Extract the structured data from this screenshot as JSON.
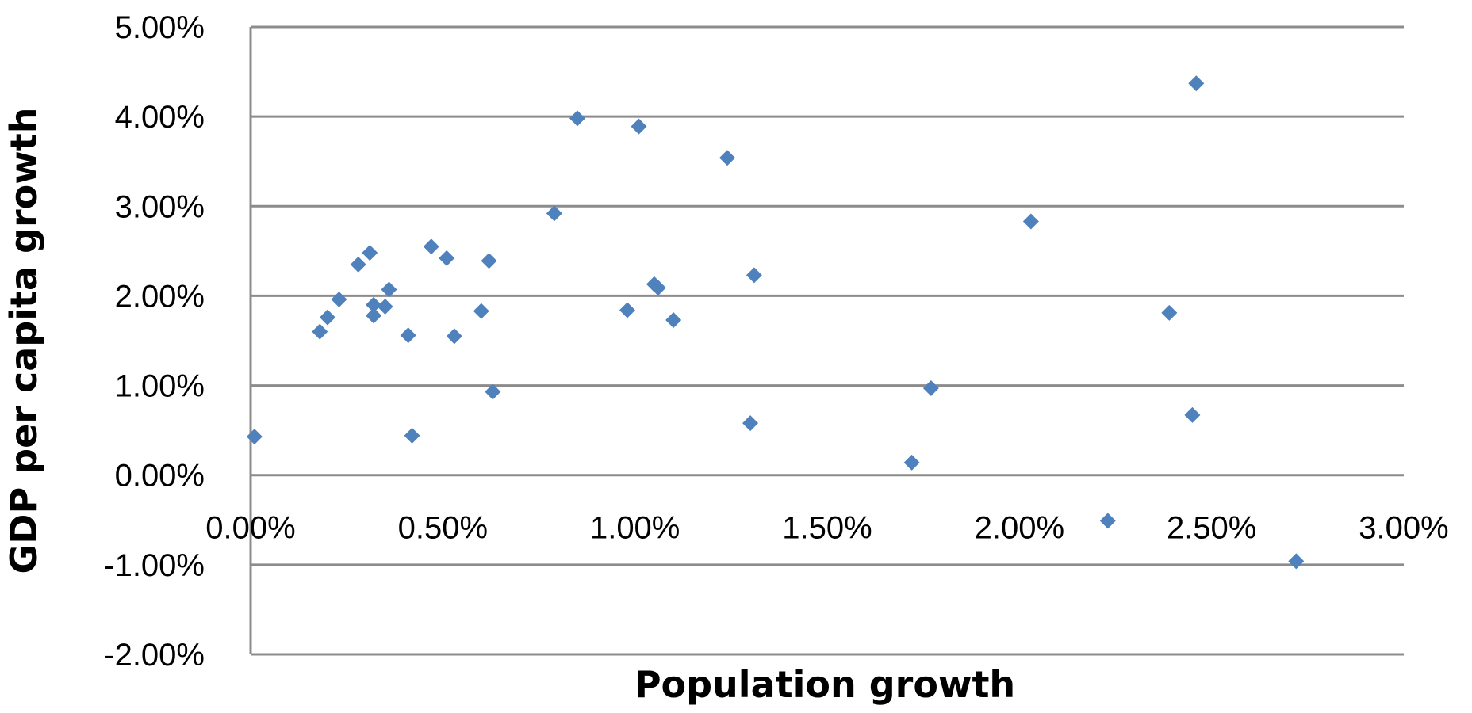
{
  "chart_data": {
    "type": "scatter",
    "title": "",
    "xlabel": "Population growth",
    "ylabel": "GDP per capita growth",
    "xlim": [
      0,
      0.03
    ],
    "ylim": [
      -0.02,
      0.05
    ],
    "x_ticks": [
      0,
      0.005,
      0.01,
      0.015,
      0.02,
      0.025,
      0.03
    ],
    "x_tick_labels": [
      "0.00%",
      "0.50%",
      "1.00%",
      "1.50%",
      "2.00%",
      "2.50%",
      "3.00%"
    ],
    "y_ticks": [
      0.05,
      0.04,
      0.03,
      0.02,
      0.01,
      0,
      -0.01,
      -0.02
    ],
    "y_tick_labels": [
      "5.00%",
      "4.00%",
      "3.00%",
      "2.00%",
      "1.00%",
      "0.00%",
      "-1.00%",
      "-2.00%"
    ],
    "grid": true,
    "marker": "diamond",
    "marker_color": "#4F81BD",
    "grid_color": "#8C8C8C",
    "points": [
      {
        "x": 0.0001,
        "y": 0.0043
      },
      {
        "x": 0.0018,
        "y": 0.016
      },
      {
        "x": 0.002,
        "y": 0.0176
      },
      {
        "x": 0.0023,
        "y": 0.0196
      },
      {
        "x": 0.0028,
        "y": 0.0235
      },
      {
        "x": 0.0031,
        "y": 0.0248
      },
      {
        "x": 0.0032,
        "y": 0.019
      },
      {
        "x": 0.0032,
        "y": 0.0178
      },
      {
        "x": 0.0035,
        "y": 0.0188
      },
      {
        "x": 0.0036,
        "y": 0.0207
      },
      {
        "x": 0.0041,
        "y": 0.0156
      },
      {
        "x": 0.0042,
        "y": 0.0044
      },
      {
        "x": 0.0047,
        "y": 0.0255
      },
      {
        "x": 0.0051,
        "y": 0.0242
      },
      {
        "x": 0.0053,
        "y": 0.0155
      },
      {
        "x": 0.006,
        "y": 0.0183
      },
      {
        "x": 0.0062,
        "y": 0.0239
      },
      {
        "x": 0.0063,
        "y": 0.0093
      },
      {
        "x": 0.0079,
        "y": 0.0292
      },
      {
        "x": 0.0085,
        "y": 0.0398
      },
      {
        "x": 0.0098,
        "y": 0.0184
      },
      {
        "x": 0.0101,
        "y": 0.0389
      },
      {
        "x": 0.0105,
        "y": 0.0213
      },
      {
        "x": 0.0106,
        "y": 0.0209
      },
      {
        "x": 0.011,
        "y": 0.0173
      },
      {
        "x": 0.0124,
        "y": 0.0354
      },
      {
        "x": 0.013,
        "y": 0.0058
      },
      {
        "x": 0.0131,
        "y": 0.0223
      },
      {
        "x": 0.0172,
        "y": 0.0014
      },
      {
        "x": 0.0177,
        "y": 0.0097
      },
      {
        "x": 0.0203,
        "y": 0.0283
      },
      {
        "x": 0.0223,
        "y": -0.0051
      },
      {
        "x": 0.0239,
        "y": 0.0181
      },
      {
        "x": 0.0245,
        "y": 0.0067
      },
      {
        "x": 0.0246,
        "y": 0.0437
      },
      {
        "x": 0.0272,
        "y": -0.0096
      }
    ]
  }
}
